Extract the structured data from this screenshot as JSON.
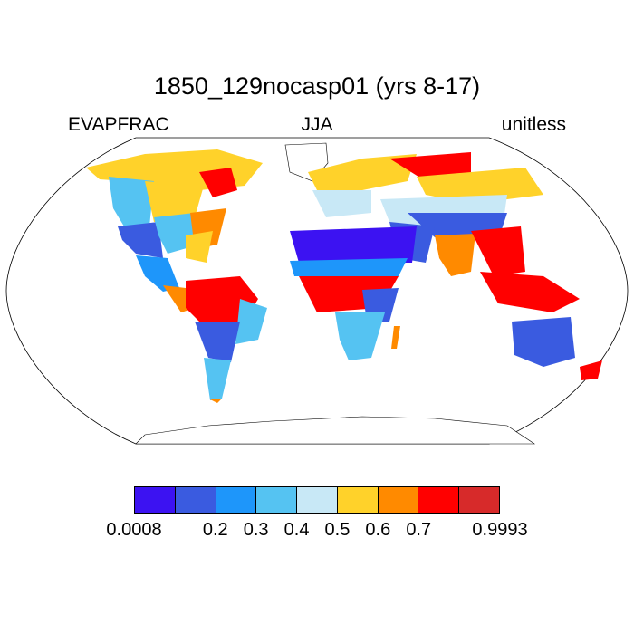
{
  "title": "1850_129nocasp01 (yrs 8-17)",
  "variable": "EVAPFRAC",
  "season": "JJA",
  "units": "unitless",
  "colorbar": {
    "colors": [
      "#3c12f2",
      "#3a5be0",
      "#1e96fa",
      "#55c3f2",
      "#c8e8f6",
      "#ffd22a",
      "#ff8a00",
      "#ff0000",
      "#d72a2a"
    ],
    "labels": [
      "0.0008",
      "0.2",
      "0.3",
      "0.4",
      "0.5",
      "0.6",
      "0.7",
      "0.9993"
    ]
  }
}
